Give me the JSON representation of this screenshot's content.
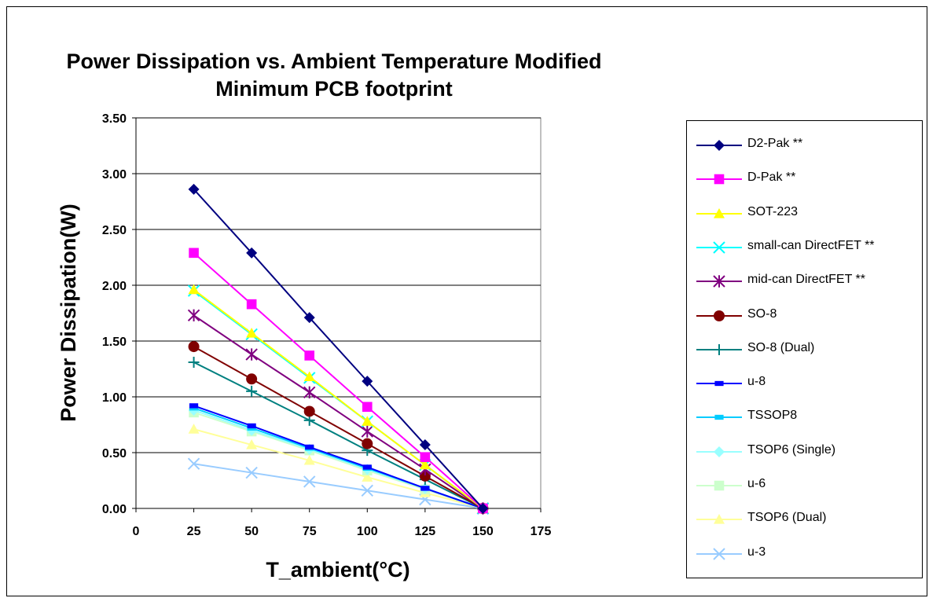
{
  "chart_data": {
    "type": "line",
    "title": "Power Dissipation vs. Ambient Temperature Modified",
    "subtitle": "Minimum PCB footprint",
    "xlabel": "T_ambient(°C)",
    "ylabel": "Power Dissipation(W)",
    "xlim": [
      0,
      175
    ],
    "ylim": [
      0,
      3.5
    ],
    "xticks": [
      "0",
      "25",
      "50",
      "75",
      "100",
      "125",
      "150",
      "175"
    ],
    "yticks": [
      "0.00",
      "0.50",
      "1.00",
      "1.50",
      "2.00",
      "2.50",
      "3.00",
      "3.50"
    ],
    "grid": "horizontal",
    "legend_position": "right",
    "x": [
      25,
      50,
      75,
      100,
      125,
      150
    ],
    "series": [
      {
        "name": "D2-Pak **",
        "color": "#000080",
        "marker": "diamond",
        "values": [
          2.86,
          2.29,
          1.71,
          1.14,
          0.57,
          0.0
        ]
      },
      {
        "name": "D-Pak **",
        "color": "#FF00FF",
        "marker": "square",
        "values": [
          2.29,
          1.83,
          1.37,
          0.91,
          0.46,
          0.0
        ]
      },
      {
        "name": "SOT-223",
        "color": "#FFFF00",
        "marker": "triangle",
        "values": [
          1.96,
          1.57,
          1.18,
          0.78,
          0.39,
          0.0
        ]
      },
      {
        "name": "small-can DirectFET **",
        "color": "#00FFFF",
        "marker": "x",
        "values": [
          1.95,
          1.56,
          1.17,
          0.78,
          0.39,
          0.0
        ]
      },
      {
        "name": "mid-can DirectFET **",
        "color": "#800080",
        "marker": "star",
        "values": [
          1.73,
          1.38,
          1.04,
          0.69,
          0.35,
          0.0
        ]
      },
      {
        "name": "SO-8",
        "color": "#800000",
        "marker": "circle",
        "values": [
          1.45,
          1.16,
          0.87,
          0.58,
          0.29,
          0.0
        ]
      },
      {
        "name": "SO-8 (Dual)",
        "color": "#008080",
        "marker": "plus",
        "values": [
          1.31,
          1.05,
          0.79,
          0.52,
          0.26,
          0.0
        ]
      },
      {
        "name": "u-8",
        "color": "#0000FF",
        "marker": "dash",
        "values": [
          0.92,
          0.74,
          0.55,
          0.37,
          0.18,
          0.0
        ]
      },
      {
        "name": "TSSOP8",
        "color": "#00CCFF",
        "marker": "dash",
        "values": [
          0.9,
          0.72,
          0.54,
          0.36,
          0.18,
          0.0
        ]
      },
      {
        "name": "TSOP6 (Single)",
        "color": "#99FFFF",
        "marker": "diamond",
        "values": [
          0.88,
          0.7,
          0.53,
          0.35,
          0.18,
          0.0
        ]
      },
      {
        "name": "u-6",
        "color": "#CCFFCC",
        "marker": "square",
        "values": [
          0.86,
          0.69,
          0.52,
          0.34,
          0.17,
          0.0
        ]
      },
      {
        "name": "TSOP6 (Dual)",
        "color": "#FFFF99",
        "marker": "triangle",
        "values": [
          0.71,
          0.57,
          0.43,
          0.28,
          0.14,
          0.0
        ]
      },
      {
        "name": "u-3",
        "color": "#99CCFF",
        "marker": "x",
        "values": [
          0.4,
          0.32,
          0.24,
          0.16,
          0.08,
          0.0
        ]
      }
    ]
  }
}
